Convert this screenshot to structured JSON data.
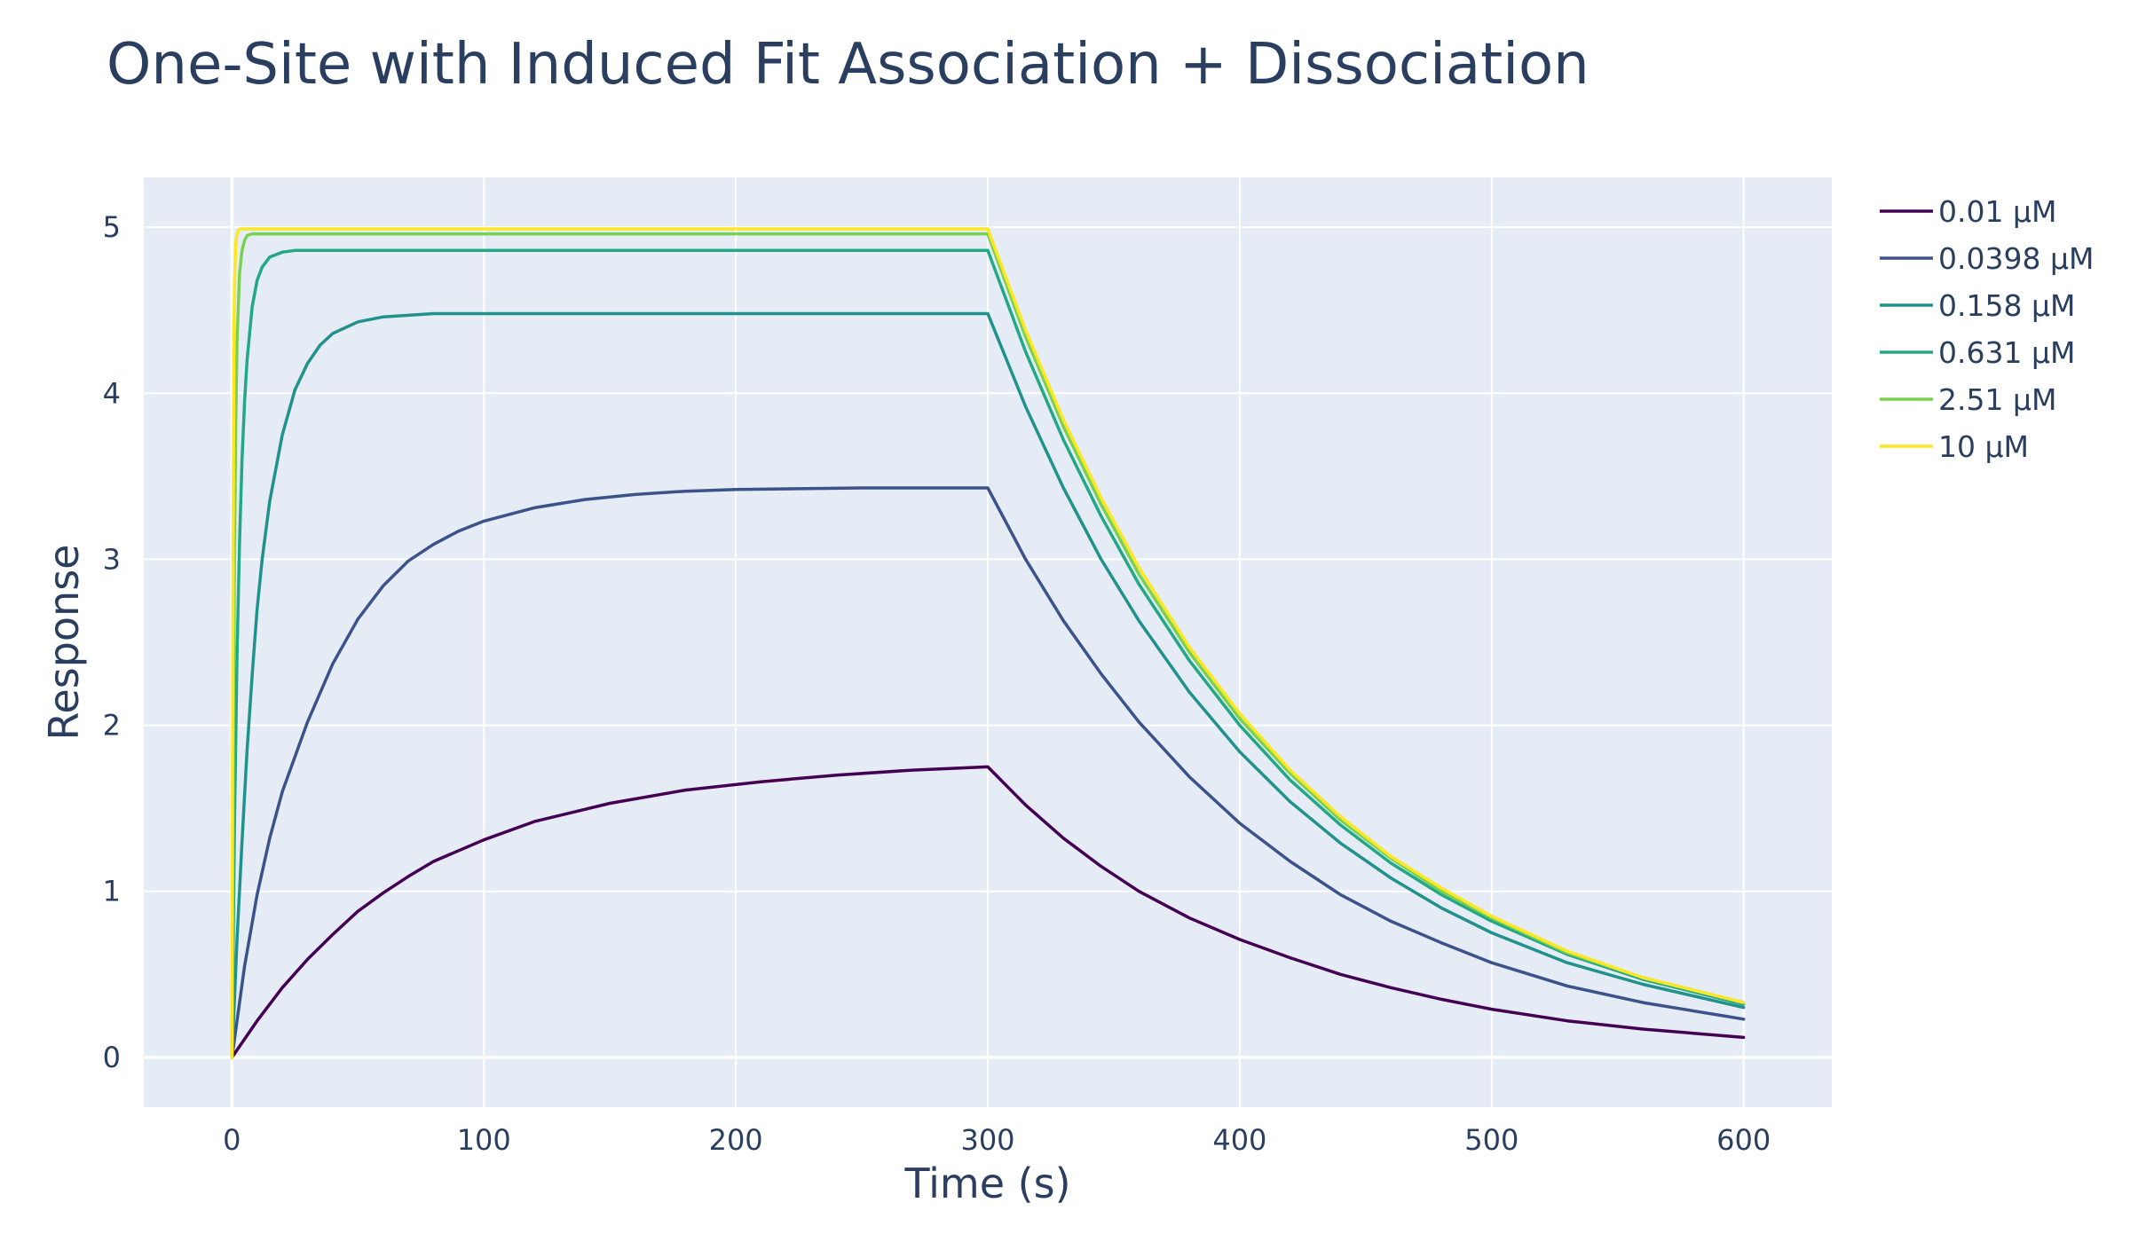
{
  "chart_data": {
    "type": "line",
    "title": "One-Site with Induced Fit Association + Dissociation",
    "xlabel": "Time (s)",
    "ylabel": "Response",
    "xlim": [
      -35,
      635
    ],
    "ylim": [
      -0.3,
      5.3
    ],
    "x_ticks": [
      0,
      100,
      200,
      300,
      400,
      500,
      600
    ],
    "y_ticks": [
      0,
      1,
      2,
      3,
      4,
      5
    ],
    "grid": true,
    "legend_position": "right",
    "colors": {
      "plot_background": "#e5ecf6",
      "grid": "#ffffff",
      "text": "#2a3f5f"
    },
    "series": [
      {
        "name": "0.01 µM",
        "color": "#440154",
        "x": [
          0,
          10,
          20,
          30,
          40,
          50,
          60,
          70,
          80,
          100,
          120,
          150,
          180,
          210,
          240,
          270,
          300,
          315,
          330,
          345,
          360,
          380,
          400,
          420,
          440,
          460,
          480,
          500,
          530,
          560,
          600
        ],
        "y": [
          0,
          0.22,
          0.42,
          0.59,
          0.74,
          0.88,
          0.99,
          1.09,
          1.18,
          1.31,
          1.42,
          1.53,
          1.61,
          1.66,
          1.7,
          1.73,
          1.75,
          1.52,
          1.32,
          1.15,
          1.0,
          0.84,
          0.71,
          0.6,
          0.5,
          0.42,
          0.35,
          0.29,
          0.22,
          0.17,
          0.12
        ]
      },
      {
        "name": "0.0398 µM",
        "color": "#3b528b",
        "x": [
          0,
          5,
          10,
          15,
          20,
          30,
          40,
          50,
          60,
          70,
          80,
          90,
          100,
          120,
          140,
          160,
          180,
          200,
          250,
          300,
          315,
          330,
          345,
          360,
          380,
          400,
          420,
          440,
          460,
          480,
          500,
          530,
          560,
          600
        ],
        "y": [
          0,
          0.55,
          0.98,
          1.32,
          1.6,
          2.02,
          2.37,
          2.64,
          2.84,
          2.99,
          3.09,
          3.17,
          3.23,
          3.31,
          3.36,
          3.39,
          3.41,
          3.42,
          3.43,
          3.43,
          3.0,
          2.63,
          2.31,
          2.02,
          1.69,
          1.41,
          1.18,
          0.98,
          0.82,
          0.69,
          0.57,
          0.43,
          0.33,
          0.23
        ]
      },
      {
        "name": "0.158 µM",
        "color": "#21918c",
        "x": [
          0,
          2,
          4,
          6,
          8,
          10,
          12,
          15,
          20,
          25,
          30,
          35,
          40,
          50,
          60,
          80,
          100,
          150,
          200,
          300,
          315,
          330,
          345,
          360,
          380,
          400,
          420,
          440,
          460,
          480,
          500,
          530,
          560,
          600
        ],
        "y": [
          0,
          0.7,
          1.3,
          1.85,
          2.3,
          2.7,
          3.0,
          3.35,
          3.75,
          4.02,
          4.18,
          4.29,
          4.36,
          4.43,
          4.46,
          4.48,
          4.48,
          4.48,
          4.48,
          4.48,
          3.92,
          3.43,
          3.0,
          2.63,
          2.2,
          1.84,
          1.54,
          1.29,
          1.08,
          0.9,
          0.75,
          0.57,
          0.44,
          0.3
        ]
      },
      {
        "name": "0.631 µM",
        "color": "#22a884",
        "x": [
          0,
          1,
          2,
          3,
          4,
          5,
          6,
          8,
          10,
          12,
          15,
          20,
          25,
          30,
          40,
          60,
          100,
          200,
          300,
          315,
          330,
          345,
          360,
          380,
          400,
          420,
          440,
          460,
          480,
          500,
          530,
          560,
          600
        ],
        "y": [
          0,
          1.4,
          2.4,
          3.1,
          3.6,
          3.95,
          4.2,
          4.52,
          4.68,
          4.76,
          4.82,
          4.85,
          4.86,
          4.86,
          4.86,
          4.86,
          4.86,
          4.86,
          4.86,
          4.25,
          3.72,
          3.26,
          2.85,
          2.39,
          2.0,
          1.67,
          1.4,
          1.17,
          0.98,
          0.82,
          0.62,
          0.47,
          0.32
        ]
      },
      {
        "name": "2.51 µM",
        "color": "#7ad151",
        "x": [
          0,
          0.5,
          1,
          1.5,
          2,
          3,
          4,
          5,
          6,
          8,
          10,
          20,
          100,
          200,
          300,
          315,
          330,
          345,
          360,
          380,
          400,
          420,
          440,
          460,
          480,
          500,
          530,
          560,
          600
        ],
        "y": [
          0,
          1.8,
          3.0,
          3.8,
          4.3,
          4.72,
          4.86,
          4.92,
          4.95,
          4.96,
          4.96,
          4.96,
          4.96,
          4.96,
          4.96,
          4.34,
          3.8,
          3.33,
          2.91,
          2.44,
          2.04,
          1.71,
          1.43,
          1.2,
          1.0,
          0.84,
          0.63,
          0.48,
          0.33
        ]
      },
      {
        "name": "10 µM",
        "color": "#fde725",
        "x": [
          0,
          0.2,
          0.5,
          0.8,
          1,
          1.5,
          2,
          3,
          5,
          100,
          200,
          300,
          315,
          330,
          345,
          360,
          380,
          400,
          420,
          440,
          460,
          480,
          500,
          530,
          560,
          600
        ],
        "y": [
          0,
          1.6,
          3.3,
          4.3,
          4.65,
          4.9,
          4.96,
          4.99,
          4.99,
          4.99,
          4.99,
          4.99,
          4.38,
          3.84,
          3.37,
          2.95,
          2.47,
          2.07,
          1.73,
          1.45,
          1.21,
          1.02,
          0.85,
          0.64,
          0.48,
          0.33
        ]
      }
    ]
  }
}
